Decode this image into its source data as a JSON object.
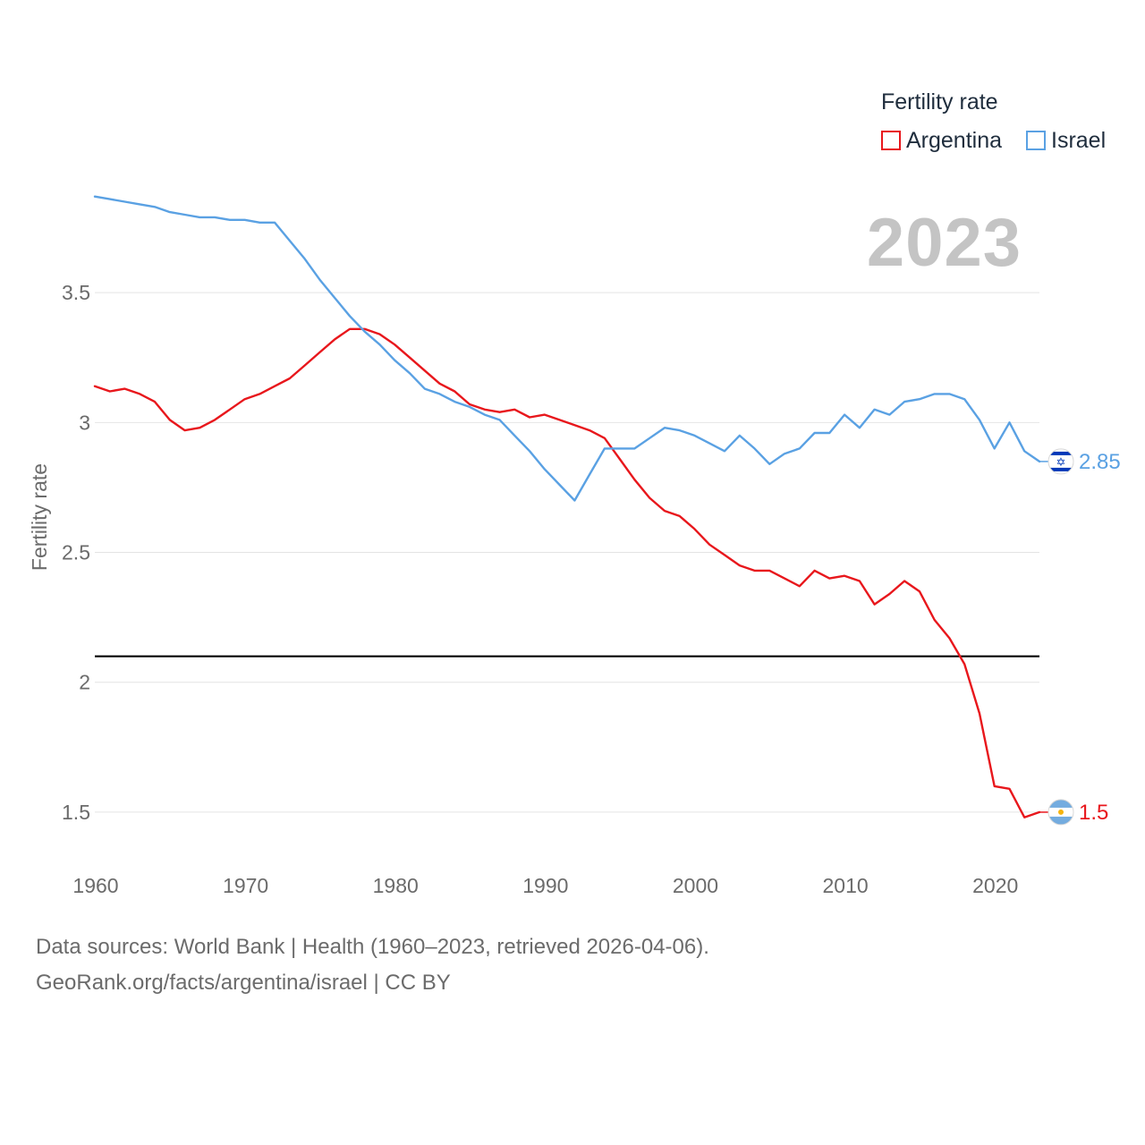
{
  "legend": {
    "title": "Fertility rate",
    "items": [
      {
        "label": "Argentina",
        "color": "#e8171c"
      },
      {
        "label": "Israel",
        "color": "#5aa1e3"
      }
    ]
  },
  "year_label": "2023",
  "footer": {
    "line1": "Data sources: World Bank | Health (1960–2023, retrieved 2026-04-06).",
    "line2": "GeoRank.org/facts/argentina/israel | CC BY"
  },
  "chart_data": {
    "type": "line",
    "title": "Fertility rate",
    "xlabel": "",
    "ylabel": "Fertility rate",
    "xlim": [
      1960,
      2023
    ],
    "ylim": [
      1.3,
      3.9
    ],
    "x_ticks": [
      1960,
      1970,
      1980,
      1990,
      2000,
      2010,
      2020
    ],
    "y_ticks": [
      1.5,
      2,
      2.5,
      3,
      3.5
    ],
    "y_tick_labels": [
      "1.5",
      "2",
      "2.5",
      "3",
      "3.5"
    ],
    "reference_line": {
      "y": 2.1,
      "color": "#000000"
    },
    "x": [
      1960,
      1961,
      1962,
      1963,
      1964,
      1965,
      1966,
      1967,
      1968,
      1969,
      1970,
      1971,
      1972,
      1973,
      1974,
      1975,
      1976,
      1977,
      1978,
      1979,
      1980,
      1981,
      1982,
      1983,
      1984,
      1985,
      1986,
      1987,
      1988,
      1989,
      1990,
      1991,
      1992,
      1993,
      1994,
      1995,
      1996,
      1997,
      1998,
      1999,
      2000,
      2001,
      2002,
      2003,
      2004,
      2005,
      2006,
      2007,
      2008,
      2009,
      2010,
      2011,
      2012,
      2013,
      2014,
      2015,
      2016,
      2017,
      2018,
      2019,
      2020,
      2021,
      2022,
      2023
    ],
    "series": [
      {
        "name": "Argentina",
        "color": "#e8171c",
        "end_label": "1.5",
        "values": [
          3.14,
          3.12,
          3.13,
          3.11,
          3.08,
          3.01,
          2.97,
          2.98,
          3.01,
          3.05,
          3.09,
          3.11,
          3.14,
          3.17,
          3.22,
          3.27,
          3.32,
          3.36,
          3.36,
          3.34,
          3.3,
          3.25,
          3.2,
          3.15,
          3.12,
          3.07,
          3.05,
          3.04,
          3.05,
          3.02,
          3.03,
          3.01,
          2.99,
          2.97,
          2.94,
          2.86,
          2.78,
          2.71,
          2.66,
          2.64,
          2.59,
          2.53,
          2.49,
          2.45,
          2.43,
          2.43,
          2.4,
          2.37,
          2.43,
          2.4,
          2.41,
          2.39,
          2.3,
          2.34,
          2.39,
          2.35,
          2.24,
          2.17,
          2.07,
          1.88,
          1.6,
          1.59,
          1.48,
          1.5
        ]
      },
      {
        "name": "Israel",
        "color": "#5aa1e3",
        "end_label": "2.85",
        "values": [
          3.87,
          3.86,
          3.85,
          3.84,
          3.83,
          3.81,
          3.8,
          3.79,
          3.79,
          3.78,
          3.78,
          3.77,
          3.77,
          3.7,
          3.63,
          3.55,
          3.48,
          3.41,
          3.35,
          3.3,
          3.24,
          3.19,
          3.13,
          3.11,
          3.08,
          3.06,
          3.03,
          3.01,
          2.95,
          2.89,
          2.82,
          2.76,
          2.7,
          2.8,
          2.9,
          2.9,
          2.9,
          2.94,
          2.98,
          2.97,
          2.95,
          2.92,
          2.89,
          2.95,
          2.9,
          2.84,
          2.88,
          2.9,
          2.96,
          2.96,
          3.03,
          2.98,
          3.05,
          3.03,
          3.08,
          3.09,
          3.11,
          3.11,
          3.09,
          3.01,
          2.9,
          3.0,
          2.89,
          2.85
        ]
      }
    ]
  }
}
